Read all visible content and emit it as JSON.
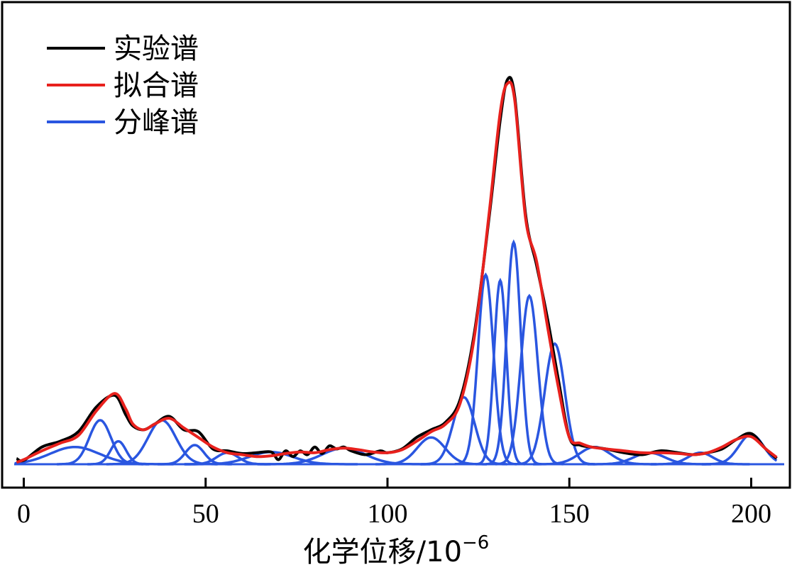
{
  "chart_data": {
    "type": "line",
    "xlabel": "化学位移/10",
    "xlabel_exponent": "−6",
    "ylabel": "",
    "xlim": [
      -2.5,
      208
    ],
    "ylim": [
      -0.2,
      10.6
    ],
    "grid": false,
    "legend_position": "top-left",
    "x_ticks": [
      0,
      50,
      100,
      150,
      200
    ],
    "x_tick_labels": [
      "0",
      "50",
      "100",
      "150",
      "200"
    ],
    "legend": [
      {
        "label": "实验谱",
        "color": "#000000"
      },
      {
        "label": "拟合谱",
        "color": "#e8211d"
      },
      {
        "label": "分峰谱",
        "color": "#2a56e0"
      }
    ],
    "series": [
      {
        "name": "实验谱",
        "color": "#000000",
        "x": [
          -2,
          0,
          5,
          10,
          15,
          20,
          25,
          28,
          30,
          33,
          36,
          40,
          44,
          48,
          52,
          56,
          60,
          64,
          68,
          70,
          72,
          74,
          76,
          78,
          80,
          82,
          84,
          86,
          88,
          90,
          94,
          98,
          100,
          104,
          108,
          112,
          116,
          120,
          124,
          128,
          131,
          133,
          135,
          138,
          141,
          144,
          147,
          150,
          153,
          156,
          160,
          165,
          170,
          175,
          180,
          184,
          188,
          192,
          196,
          200,
          204,
          207
        ],
        "y": [
          0.15,
          0.1,
          0.45,
          0.6,
          0.85,
          1.5,
          1.8,
          1.3,
          1.0,
          0.9,
          1.05,
          1.25,
          0.9,
          0.85,
          0.4,
          0.35,
          0.28,
          0.3,
          0.32,
          0.12,
          0.35,
          0.2,
          0.35,
          0.25,
          0.45,
          0.28,
          0.48,
          0.4,
          0.45,
          0.35,
          0.25,
          0.35,
          0.3,
          0.4,
          0.7,
          0.9,
          1.1,
          1.7,
          3.5,
          6.5,
          9.0,
          10.05,
          9.6,
          6.5,
          5.2,
          3.8,
          2.2,
          0.7,
          0.5,
          0.45,
          0.4,
          0.3,
          0.25,
          0.35,
          0.3,
          0.25,
          0.3,
          0.4,
          0.65,
          0.8,
          0.4,
          0.15
        ]
      },
      {
        "name": "拟合谱",
        "color": "#e8211d",
        "x": [
          -2,
          0,
          5,
          10,
          15,
          20,
          25,
          28,
          30,
          33,
          36,
          40,
          44,
          48,
          52,
          56,
          60,
          64,
          68,
          72,
          76,
          80,
          84,
          88,
          92,
          96,
          100,
          104,
          108,
          112,
          116,
          120,
          124,
          128,
          131,
          133,
          135,
          138,
          141,
          144,
          147,
          150,
          153,
          156,
          160,
          165,
          170,
          175,
          180,
          184,
          188,
          192,
          196,
          200,
          204,
          207
        ],
        "y": [
          0.05,
          0.12,
          0.35,
          0.55,
          0.75,
          1.4,
          1.85,
          1.45,
          1.05,
          0.9,
          1.05,
          1.2,
          0.95,
          0.7,
          0.45,
          0.3,
          0.25,
          0.2,
          0.22,
          0.28,
          0.32,
          0.3,
          0.38,
          0.42,
          0.38,
          0.32,
          0.3,
          0.38,
          0.6,
          0.85,
          1.05,
          1.6,
          3.4,
          6.6,
          9.2,
          9.95,
          9.5,
          6.4,
          5.3,
          3.6,
          2.0,
          0.7,
          0.55,
          0.45,
          0.4,
          0.35,
          0.3,
          0.3,
          0.28,
          0.25,
          0.3,
          0.45,
          0.65,
          0.72,
          0.4,
          0.18
        ]
      },
      {
        "name": "分峰谱",
        "color": "#2a56e0",
        "peaks": [
          {
            "center": 14,
            "height": 0.45,
            "fwhm": 16
          },
          {
            "center": 21,
            "height": 1.15,
            "fwhm": 7
          },
          {
            "center": 26,
            "height": 0.6,
            "fwhm": 5
          },
          {
            "center": 38,
            "height": 1.15,
            "fwhm": 9
          },
          {
            "center": 47,
            "height": 0.5,
            "fwhm": 6
          },
          {
            "center": 56,
            "height": 0.3,
            "fwhm": 7
          },
          {
            "center": 68,
            "height": 0.32,
            "fwhm": 14
          },
          {
            "center": 88,
            "height": 0.42,
            "fwhm": 14
          },
          {
            "center": 112,
            "height": 0.7,
            "fwhm": 9
          },
          {
            "center": 121,
            "height": 1.75,
            "fwhm": 7
          },
          {
            "center": 127,
            "height": 4.95,
            "fwhm": 5
          },
          {
            "center": 131,
            "height": 4.8,
            "fwhm": 4
          },
          {
            "center": 134.7,
            "height": 5.8,
            "fwhm": 4.5
          },
          {
            "center": 139,
            "height": 4.4,
            "fwhm": 5.5
          },
          {
            "center": 146,
            "height": 3.15,
            "fwhm": 6.5
          },
          {
            "center": 157,
            "height": 0.45,
            "fwhm": 10
          },
          {
            "center": 172,
            "height": 0.3,
            "fwhm": 10
          },
          {
            "center": 186,
            "height": 0.3,
            "fwhm": 8
          },
          {
            "center": 200,
            "height": 0.78,
            "fwhm": 8
          }
        ]
      }
    ]
  }
}
